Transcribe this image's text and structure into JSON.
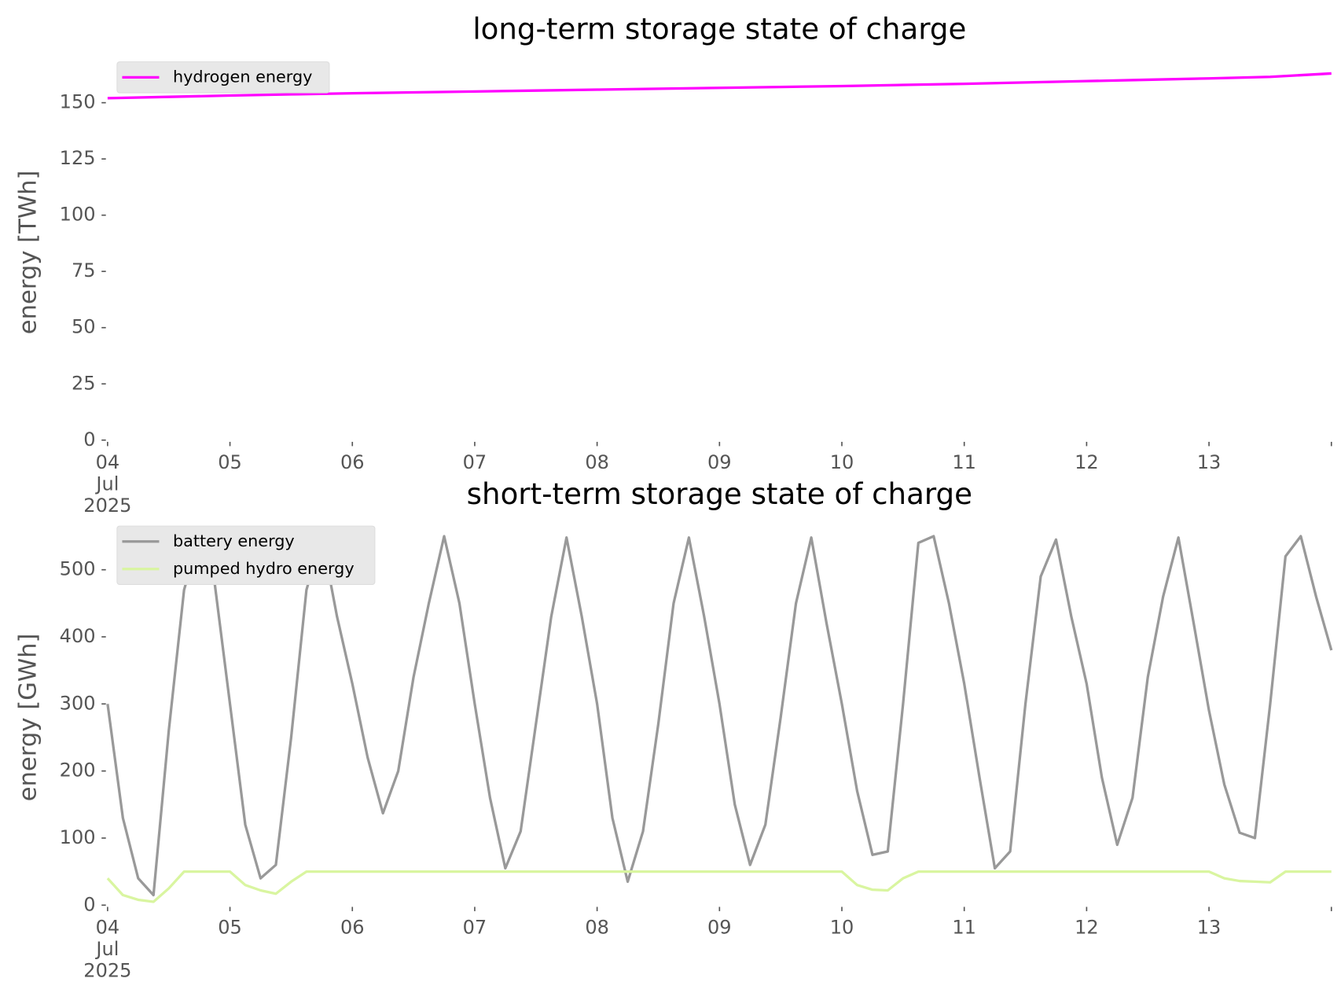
{
  "chart_data": [
    {
      "type": "line",
      "title": "long-term storage state of charge",
      "ylabel": "energy [TWh]",
      "x": [
        "2025-07-04T00:00",
        "2025-07-04T12:00",
        "2025-07-05T00:00",
        "2025-07-05T12:00",
        "2025-07-06T00:00",
        "2025-07-06T12:00",
        "2025-07-07T00:00",
        "2025-07-07T12:00",
        "2025-07-08T00:00",
        "2025-07-08T12:00",
        "2025-07-09T00:00",
        "2025-07-09T12:00",
        "2025-07-10T00:00",
        "2025-07-10T12:00",
        "2025-07-11T00:00",
        "2025-07-11T12:00",
        "2025-07-12T00:00",
        "2025-07-12T12:00",
        "2025-07-13T00:00",
        "2025-07-13T12:00",
        "2025-07-14T00:00"
      ],
      "series": [
        {
          "name": "hydrogen energy",
          "color": "#ff00ff",
          "values": [
            152,
            152.6,
            153.2,
            153.7,
            154.2,
            154.6,
            155,
            155.4,
            155.8,
            156.2,
            156.6,
            157,
            157.4,
            157.9,
            158.4,
            159,
            159.6,
            160.2,
            160.8,
            161.5,
            163
          ]
        }
      ],
      "xlim": [
        "2025-07-04T00:00",
        "2025-07-14T00:00"
      ],
      "xticks": [
        {
          "value": "2025-07-04",
          "label": "04\nJul\n2025"
        },
        {
          "value": "2025-07-05",
          "label": "05"
        },
        {
          "value": "2025-07-06",
          "label": "06"
        },
        {
          "value": "2025-07-07",
          "label": "07"
        },
        {
          "value": "2025-07-08",
          "label": "08"
        },
        {
          "value": "2025-07-09",
          "label": "09"
        },
        {
          "value": "2025-07-10",
          "label": "10"
        },
        {
          "value": "2025-07-11",
          "label": "11"
        },
        {
          "value": "2025-07-12",
          "label": "12"
        },
        {
          "value": "2025-07-13",
          "label": "13"
        },
        {
          "value": "2025-07-14",
          "label": null
        }
      ],
      "ylim": [
        0,
        167
      ],
      "yticks": [
        0,
        25,
        50,
        75,
        100,
        125,
        150
      ],
      "grid": false,
      "legend": "upper left"
    },
    {
      "type": "line",
      "title": "short-term storage state of charge",
      "ylabel": "energy [GWh]",
      "x": [
        "2025-07-04T00:00",
        "2025-07-04T03:00",
        "2025-07-04T06:00",
        "2025-07-04T09:00",
        "2025-07-04T12:00",
        "2025-07-04T15:00",
        "2025-07-04T18:00",
        "2025-07-04T21:00",
        "2025-07-05T00:00",
        "2025-07-05T03:00",
        "2025-07-05T06:00",
        "2025-07-05T09:00",
        "2025-07-05T12:00",
        "2025-07-05T15:00",
        "2025-07-05T18:00",
        "2025-07-05T21:00",
        "2025-07-06T00:00",
        "2025-07-06T03:00",
        "2025-07-06T06:00",
        "2025-07-06T09:00",
        "2025-07-06T12:00",
        "2025-07-06T15:00",
        "2025-07-06T18:00",
        "2025-07-06T21:00",
        "2025-07-07T00:00",
        "2025-07-07T03:00",
        "2025-07-07T06:00",
        "2025-07-07T09:00",
        "2025-07-07T12:00",
        "2025-07-07T15:00",
        "2025-07-07T18:00",
        "2025-07-07T21:00",
        "2025-07-08T00:00",
        "2025-07-08T03:00",
        "2025-07-08T06:00",
        "2025-07-08T09:00",
        "2025-07-08T12:00",
        "2025-07-08T15:00",
        "2025-07-08T18:00",
        "2025-07-08T21:00",
        "2025-07-09T00:00",
        "2025-07-09T03:00",
        "2025-07-09T06:00",
        "2025-07-09T09:00",
        "2025-07-09T12:00",
        "2025-07-09T15:00",
        "2025-07-09T18:00",
        "2025-07-09T21:00",
        "2025-07-10T00:00",
        "2025-07-10T03:00",
        "2025-07-10T06:00",
        "2025-07-10T09:00",
        "2025-07-10T12:00",
        "2025-07-10T15:00",
        "2025-07-10T18:00",
        "2025-07-10T21:00",
        "2025-07-11T00:00",
        "2025-07-11T03:00",
        "2025-07-11T06:00",
        "2025-07-11T09:00",
        "2025-07-11T12:00",
        "2025-07-11T15:00",
        "2025-07-11T18:00",
        "2025-07-11T21:00",
        "2025-07-12T00:00",
        "2025-07-12T03:00",
        "2025-07-12T06:00",
        "2025-07-12T09:00",
        "2025-07-12T12:00",
        "2025-07-12T15:00",
        "2025-07-12T18:00",
        "2025-07-12T21:00",
        "2025-07-13T00:00",
        "2025-07-13T03:00",
        "2025-07-13T06:00",
        "2025-07-13T09:00",
        "2025-07-13T12:00",
        "2025-07-13T15:00",
        "2025-07-13T18:00",
        "2025-07-13T21:00",
        "2025-07-14T00:00"
      ],
      "series": [
        {
          "name": "battery energy",
          "color": "#999999",
          "values": [
            300,
            130,
            40,
            15,
            260,
            470,
            550,
            480,
            300,
            120,
            40,
            60,
            250,
            470,
            550,
            430,
            330,
            220,
            137,
            200,
            340,
            450,
            550,
            450,
            300,
            160,
            55,
            110,
            270,
            430,
            548,
            430,
            300,
            130,
            35,
            110,
            270,
            450,
            548,
            430,
            300,
            150,
            60,
            120,
            280,
            450,
            548,
            420,
            300,
            170,
            75,
            80,
            300,
            540,
            550,
            450,
            330,
            190,
            55,
            80,
            300,
            490,
            545,
            430,
            330,
            190,
            90,
            160,
            340,
            460,
            548,
            420,
            290,
            180,
            108,
            100,
            300,
            520,
            550,
            460,
            380
          ]
        },
        {
          "name": "pumped hydro energy",
          "color": "#d9f5a0",
          "values": [
            40,
            15,
            8,
            5,
            25,
            50,
            50,
            50,
            50,
            30,
            22,
            17,
            35,
            50,
            50,
            50,
            50,
            50,
            50,
            50,
            50,
            50,
            50,
            50,
            50,
            50,
            50,
            50,
            50,
            50,
            50,
            50,
            50,
            50,
            50,
            50,
            50,
            50,
            50,
            50,
            50,
            50,
            50,
            50,
            50,
            50,
            50,
            50,
            50,
            30,
            23,
            22,
            40,
            50,
            50,
            50,
            50,
            50,
            50,
            50,
            50,
            50,
            50,
            50,
            50,
            50,
            50,
            50,
            50,
            50,
            50,
            50,
            50,
            40,
            36,
            35,
            34,
            50,
            50,
            50,
            50
          ]
        }
      ],
      "xlim": [
        "2025-07-04T00:00",
        "2025-07-14T00:00"
      ],
      "xticks": [
        {
          "value": "2025-07-04",
          "label": "04\nJul\n2025"
        },
        {
          "value": "2025-07-05",
          "label": "05"
        },
        {
          "value": "2025-07-06",
          "label": "06"
        },
        {
          "value": "2025-07-07",
          "label": "07"
        },
        {
          "value": "2025-07-08",
          "label": "08"
        },
        {
          "value": "2025-07-09",
          "label": "09"
        },
        {
          "value": "2025-07-10",
          "label": "10"
        },
        {
          "value": "2025-07-11",
          "label": "11"
        },
        {
          "value": "2025-07-12",
          "label": "12"
        },
        {
          "value": "2025-07-13",
          "label": "13"
        },
        {
          "value": "2025-07-14",
          "label": null
        }
      ],
      "ylim": [
        0,
        560
      ],
      "yticks": [
        0,
        100,
        200,
        300,
        400,
        500
      ],
      "grid": false,
      "legend": "upper left"
    }
  ]
}
